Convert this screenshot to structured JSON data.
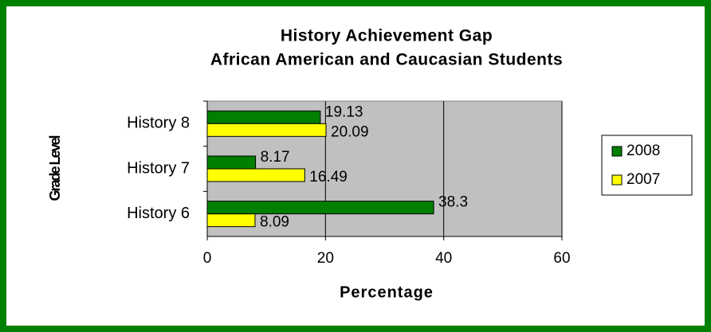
{
  "chart_data": {
    "type": "hbar",
    "title": [
      "History Achievement Gap",
      "African American and Caucasian Students"
    ],
    "categories": [
      "History 8",
      "History 7",
      "History 6"
    ],
    "series": [
      {
        "name": "2008",
        "color": "#007f00",
        "values": [
          19.13,
          8.17,
          38.3
        ]
      },
      {
        "name": "2007",
        "color": "#ffff00",
        "values": [
          20.09,
          16.49,
          8.09
        ]
      }
    ],
    "xlim": [
      0,
      60
    ],
    "xticks": [
      0,
      20,
      40,
      60
    ],
    "xlabel": "Percentage",
    "ylabel": "Grade Level",
    "grid": true,
    "legend": "right"
  }
}
